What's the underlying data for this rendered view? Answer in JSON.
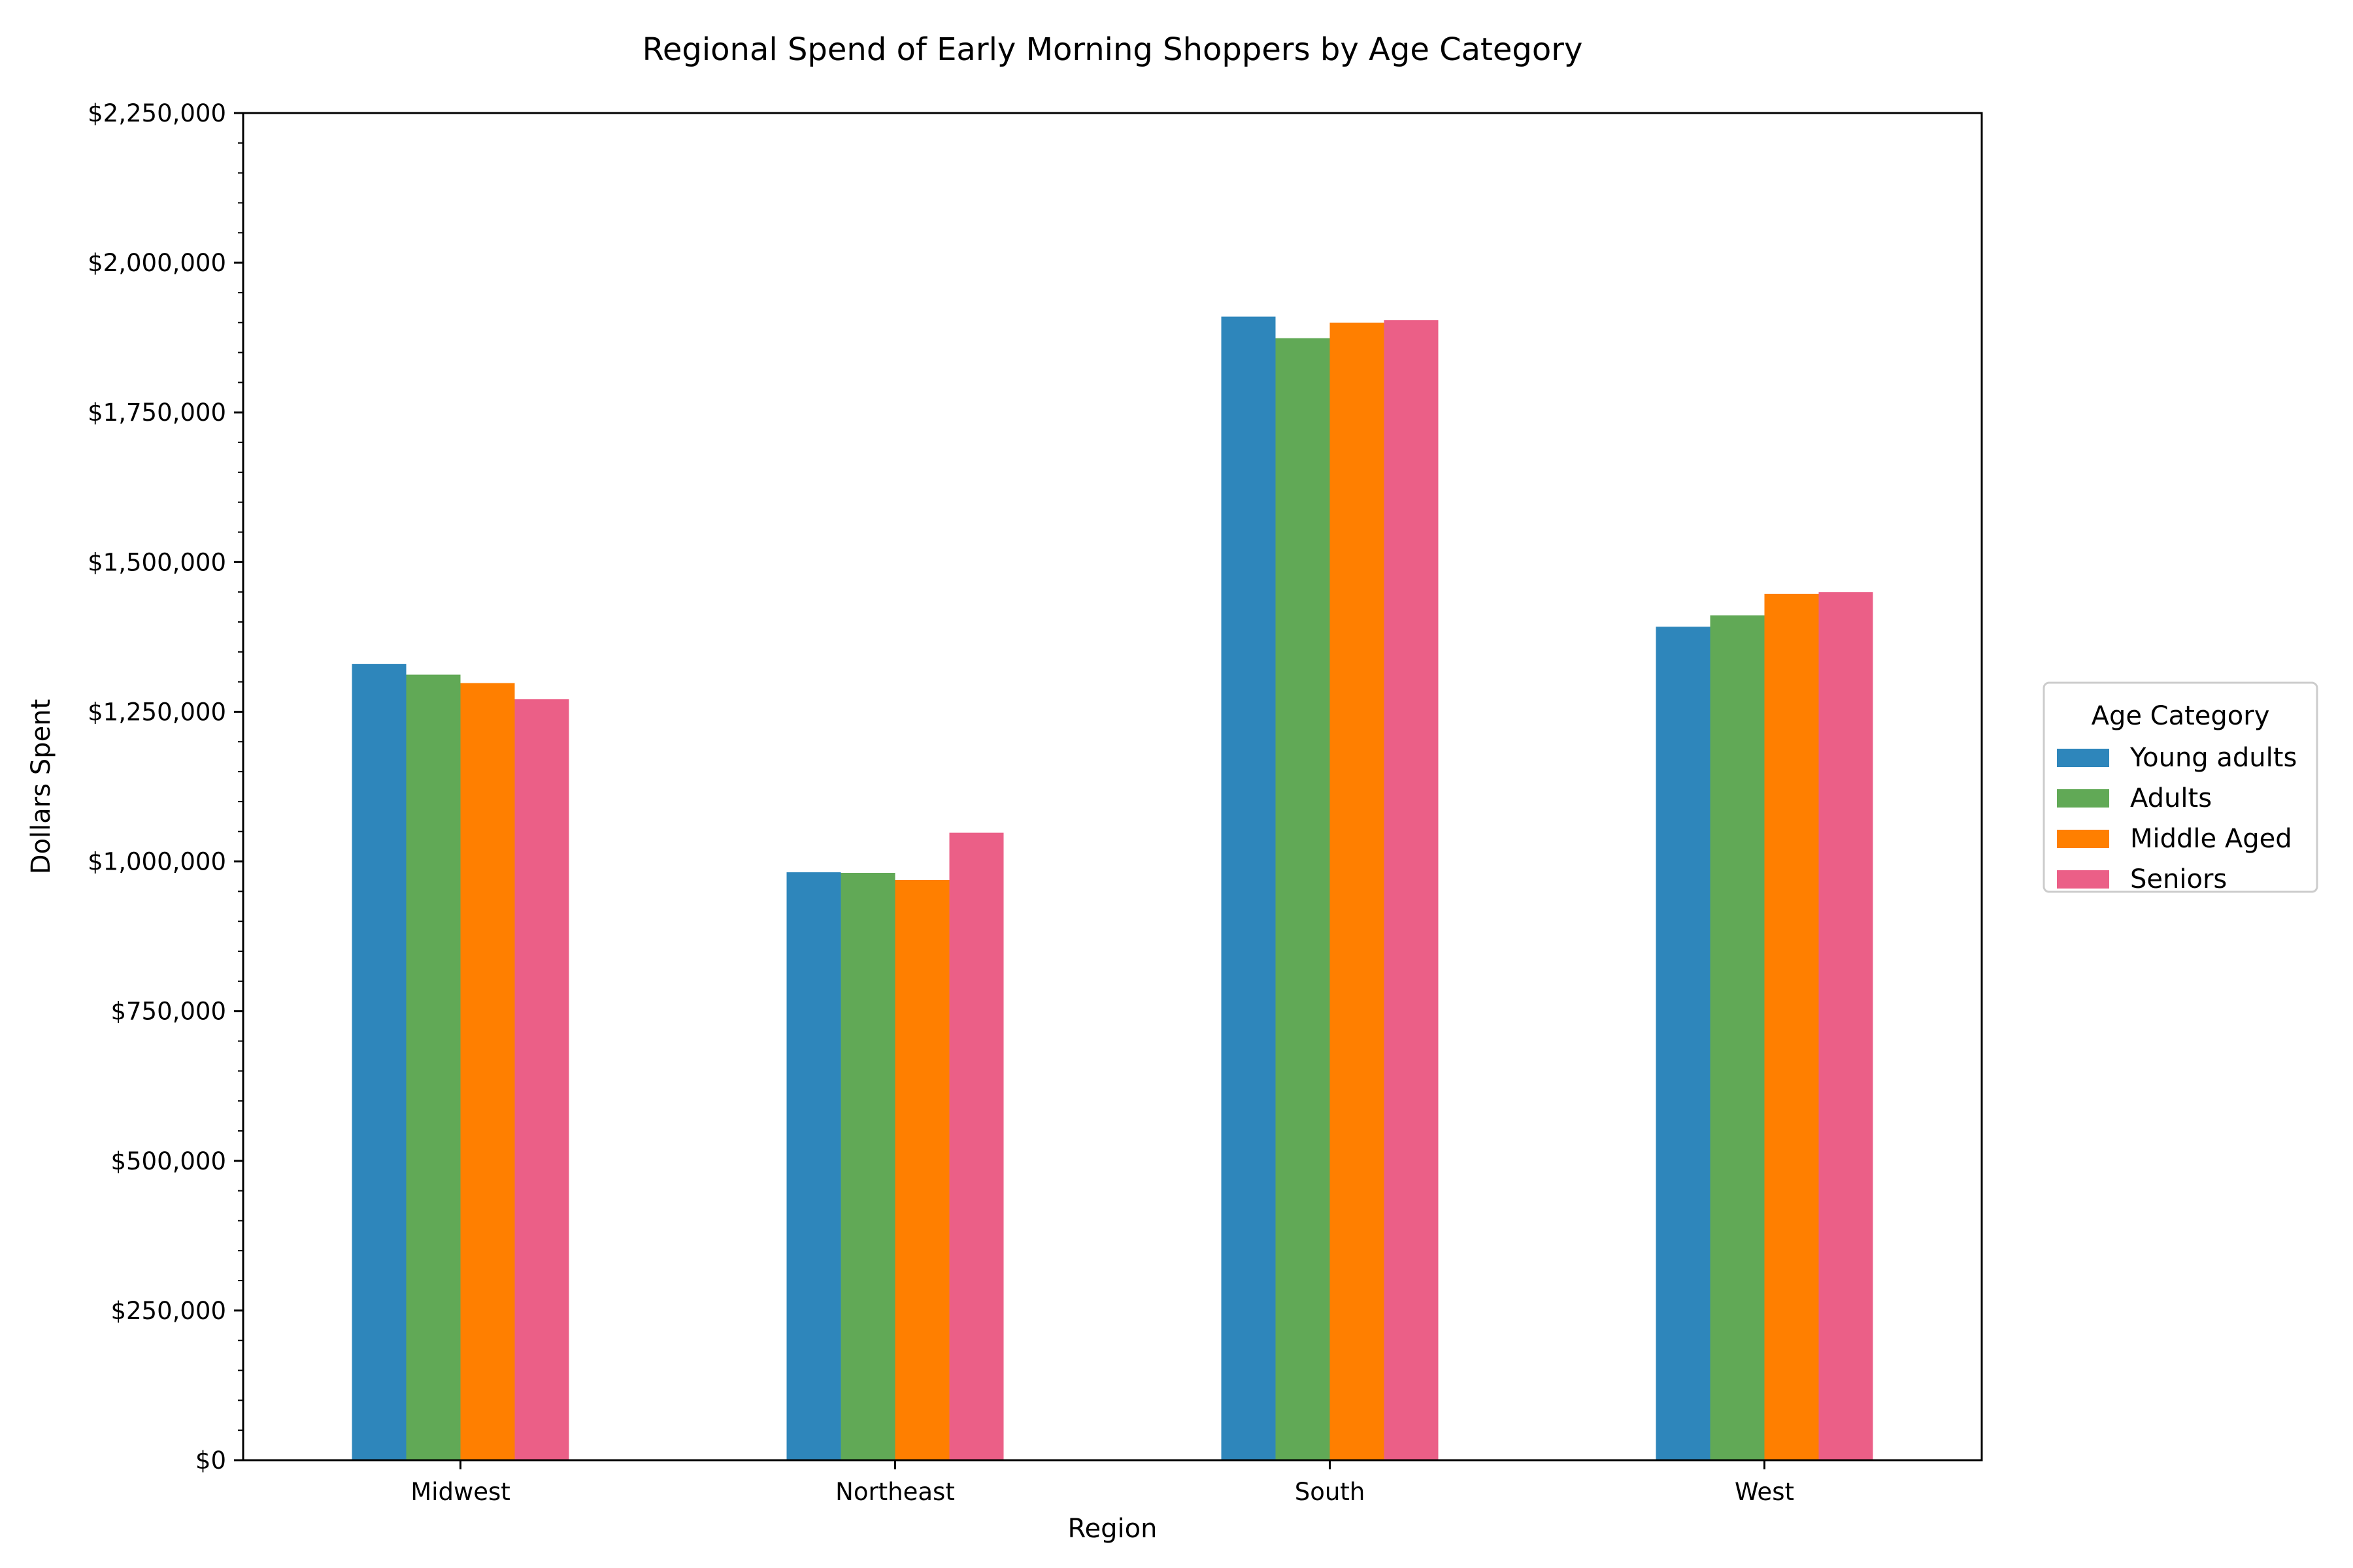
{
  "chart_data": {
    "type": "bar",
    "title": "Regional Spend of Early Morning Shoppers by Age Category",
    "xlabel": "Region",
    "ylabel": "Dollars Spent",
    "categories": [
      "Midwest",
      "Northeast",
      "South",
      "West"
    ],
    "series": [
      {
        "name": "Young adults",
        "color": "#2e86bb",
        "values": [
          1330000,
          982000,
          1910000,
          1392000
        ]
      },
      {
        "name": "Adults",
        "color": "#61a956",
        "values": [
          1312000,
          981000,
          1874000,
          1411000
        ]
      },
      {
        "name": "Middle Aged",
        "color": "#ff7f00",
        "values": [
          1298000,
          969000,
          1900000,
          1447000
        ]
      },
      {
        "name": "Seniors",
        "color": "#eb5f87",
        "values": [
          1271000,
          1048000,
          1904000,
          1450000
        ]
      }
    ],
    "ylim": [
      0,
      2250000
    ],
    "y_ticks": [
      0,
      250000,
      500000,
      750000,
      1000000,
      1250000,
      1500000,
      1750000,
      2000000,
      2250000
    ],
    "y_tick_labels": [
      "$0",
      "$250,000",
      "$500,000",
      "$750,000",
      "$1,000,000",
      "$1,250,000",
      "$1,500,000",
      "$1,750,000",
      "$2,000,000",
      "$2,250,000"
    ],
    "grid": false,
    "legend": {
      "title": "Age Category",
      "placement": "center-right outside"
    }
  }
}
